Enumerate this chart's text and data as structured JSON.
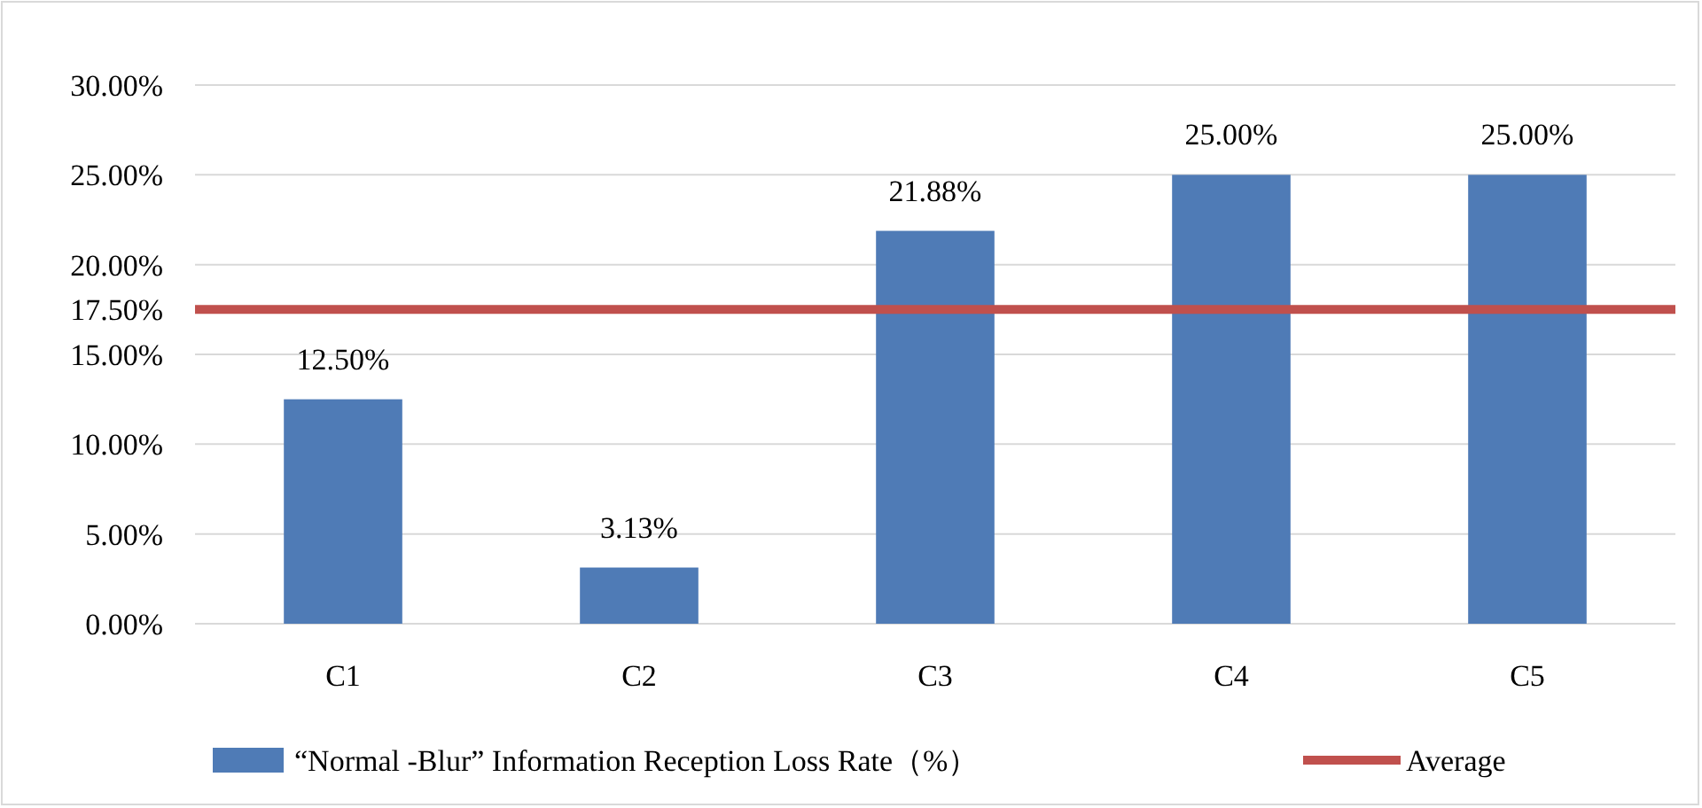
{
  "chart_data": {
    "type": "bar",
    "categories": [
      "C1",
      "C2",
      "C3",
      "C4",
      "C5"
    ],
    "series": [
      {
        "name": "“Normal -Blur” Information Reception Loss Rate（%）",
        "color": "#4f7bb6",
        "values": [
          12.5,
          3.13,
          21.88,
          25,
          25
        ],
        "value_labels": [
          "12.50%",
          "3.13%",
          "21.88%",
          "25.00%",
          "25.00%"
        ]
      }
    ],
    "ylim": [
      0,
      30
    ],
    "yticks": [
      {
        "value": 0,
        "label": "0.00%"
      },
      {
        "value": 5,
        "label": "5.00%"
      },
      {
        "value": 10,
        "label": "10.00%"
      },
      {
        "value": 15,
        "label": "15.00%"
      },
      {
        "value": 17.5,
        "label": "17.50%"
      },
      {
        "value": 20,
        "label": "20.00%"
      },
      {
        "value": 25,
        "label": "25.00%"
      },
      {
        "value": 30,
        "label": "30.00%"
      }
    ],
    "ref_lines": [
      {
        "axis": "y",
        "value": 17.5,
        "label": "Average",
        "color": "#c0504d"
      }
    ],
    "grid": "y",
    "legend": "bottom"
  }
}
